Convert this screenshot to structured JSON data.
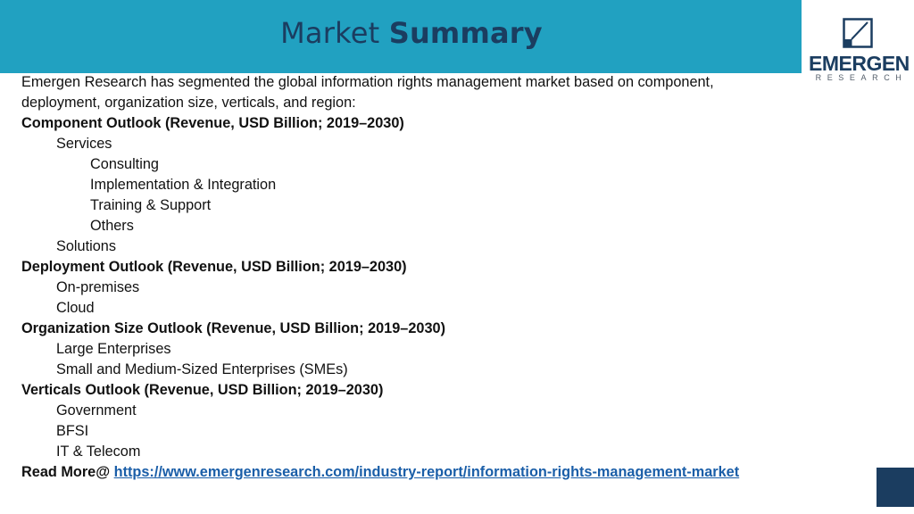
{
  "header": {
    "title_light": "Market",
    "title_bold": "Summary",
    "band_color": "#21a1c1",
    "title_color": "#1b3d60"
  },
  "logo": {
    "icon": "emergen-square-logo-icon",
    "word": "EMERGEN",
    "sub": "RESEARCH"
  },
  "intro": "Emergen Research has segmented the global information rights management market based on component, deployment, organization size, verticals, and region:",
  "sections": [
    {
      "heading": "Component Outlook (Revenue, USD Billion; 2019–2030)",
      "items": [
        {
          "label": "Services",
          "sub": [
            "Consulting",
            "Implementation & Integration",
            "Training & Support",
            "Others"
          ]
        },
        {
          "label": "Solutions"
        }
      ]
    },
    {
      "heading": "Deployment Outlook (Revenue, USD Billion; 2019–2030)",
      "items": [
        {
          "label": "On-premises"
        },
        {
          "label": "Cloud"
        }
      ]
    },
    {
      "heading": "Organization Size Outlook (Revenue, USD Billion; 2019–2030)",
      "items": [
        {
          "label": "Large Enterprises"
        },
        {
          "label": "Small and Medium-Sized Enterprises (SMEs)"
        }
      ]
    },
    {
      "heading": "Verticals Outlook (Revenue, USD Billion; 2019–2030)",
      "items": [
        {
          "label": "Government"
        },
        {
          "label": "BFSI"
        },
        {
          "label": "IT & Telecom"
        }
      ]
    }
  ],
  "read_more": {
    "label": "Read More@ ",
    "url": "https://www.emergenresearch.com/industry-report/information-rights-management-market"
  },
  "colors": {
    "accent_dark": "#1b3d60",
    "link": "#1a5ea8"
  }
}
